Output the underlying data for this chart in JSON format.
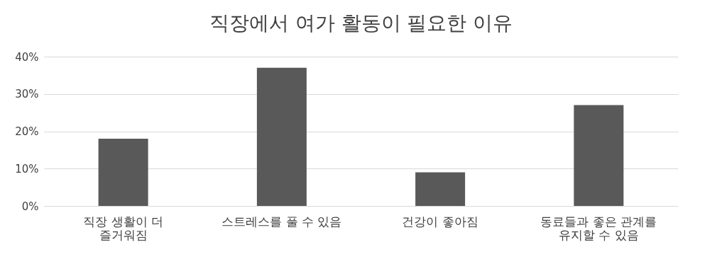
{
  "chart_data": {
    "type": "bar",
    "title": "직장에서 여가 활동이 필요한 이유",
    "categories": [
      "직장 생활이 더 즐거워짐",
      "스트레스를 풀 수 있음",
      "건강이 좋아짐",
      "동료들과 좋은 관계를 유지할 수 있음"
    ],
    "values": [
      18,
      37,
      9,
      27
    ],
    "color": "#595959",
    "ylim": [
      0,
      40
    ],
    "yticks": [
      {
        "value": 0,
        "label": "0%"
      },
      {
        "value": 10,
        "label": "10%"
      },
      {
        "value": 20,
        "label": "20%"
      },
      {
        "value": 30,
        "label": "30%"
      },
      {
        "value": 40,
        "label": "40%"
      }
    ],
    "grid": "y"
  }
}
